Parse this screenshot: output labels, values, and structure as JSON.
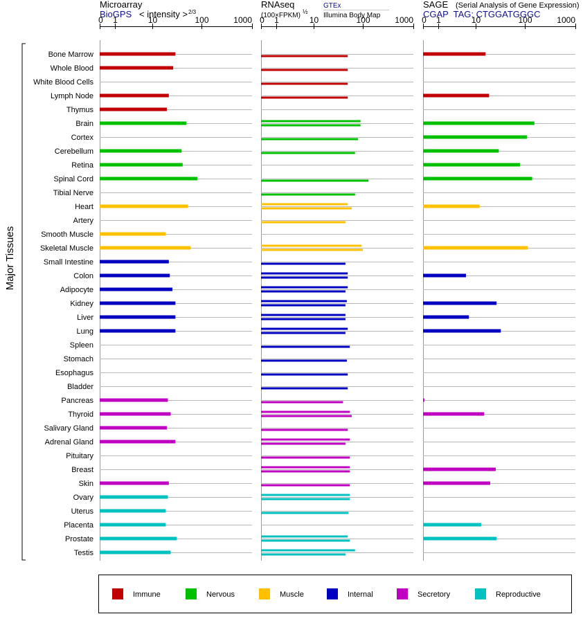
{
  "chart_data": {
    "type": "bar",
    "ylabel": "Major Tissues",
    "x_scale": "log",
    "x_ticks": [
      "0",
      "1",
      "10",
      "100",
      "1000"
    ],
    "categories": [
      "Bone Marrow",
      "Whole Blood",
      "White Blood Cells",
      "Lymph Node",
      "Thymus",
      "Brain",
      "Cortex",
      "Cerebellum",
      "Retina",
      "Spinal Cord",
      "Tibial Nerve",
      "Heart",
      "Artery",
      "Smooth Muscle",
      "Skeletal Muscle",
      "Small Intestine",
      "Colon",
      "Adipocyte",
      "Kidney",
      "Liver",
      "Lung",
      "Spleen",
      "Stomach",
      "Esophagus",
      "Bladder",
      "Pancreas",
      "Thyroid",
      "Salivary Gland",
      "Adrenal Gland",
      "Pituitary",
      "Breast",
      "Skin",
      "Ovary",
      "Uterus",
      "Placenta",
      "Prostate",
      "Testis"
    ],
    "groups": [
      "Immune",
      "Immune",
      "Immune",
      "Immune",
      "Immune",
      "Nervous",
      "Nervous",
      "Nervous",
      "Nervous",
      "Nervous",
      "Nervous",
      "Muscle",
      "Muscle",
      "Muscle",
      "Muscle",
      "Internal",
      "Internal",
      "Internal",
      "Internal",
      "Internal",
      "Internal",
      "Internal",
      "Internal",
      "Internal",
      "Internal",
      "Secretory",
      "Secretory",
      "Secretory",
      "Secretory",
      "Secretory",
      "Secretory",
      "Secretory",
      "Reproductive",
      "Reproductive",
      "Reproductive",
      "Reproductive",
      "Reproductive"
    ],
    "legend": [
      {
        "name": "Immune",
        "color": "#c00000"
      },
      {
        "name": "Nervous",
        "color": "#00c000"
      },
      {
        "name": "Muscle",
        "color": "#ffc000"
      },
      {
        "name": "Internal",
        "color": "#0000c0"
      },
      {
        "name": "Secretory",
        "color": "#c000c0"
      },
      {
        "name": "Reproductive",
        "color": "#00c0c0"
      }
    ],
    "panels": [
      {
        "title": "Microarray",
        "source": "BioGPS",
        "scale_label": "< intensity >",
        "scale_exp": "2/3",
        "values": [
          30,
          27,
          null,
          22,
          20,
          50,
          null,
          40,
          42,
          83,
          null,
          54,
          null,
          19,
          61,
          22,
          23,
          26,
          30,
          30,
          30,
          null,
          null,
          null,
          null,
          21,
          24,
          20,
          30,
          null,
          null,
          22,
          21,
          19,
          19,
          32,
          24
        ]
      },
      {
        "title": "RNAseq",
        "scale_label": "(100×FPKM)",
        "scale_exp": "½",
        "source_top": "GTEx",
        "source_bottom": "Illumina Body Map",
        "values": [
          [
            null,
            50
          ],
          [
            null,
            50
          ],
          [
            null,
            50
          ],
          [
            null,
            50
          ],
          [
            null,
            null
          ],
          [
            90,
            90
          ],
          [
            null,
            80
          ],
          [
            null,
            70
          ],
          [
            null,
            null
          ],
          [
            null,
            130
          ],
          [
            null,
            70
          ],
          [
            50,
            60
          ],
          [
            null,
            45
          ],
          [
            null,
            null
          ],
          [
            95,
            100
          ],
          [
            null,
            45
          ],
          [
            50,
            50
          ],
          [
            50,
            45
          ],
          [
            48,
            45
          ],
          [
            45,
            45
          ],
          [
            50,
            45
          ],
          [
            null,
            55
          ],
          [
            null,
            48
          ],
          [
            null,
            50
          ],
          [
            null,
            50
          ],
          [
            null,
            40
          ],
          [
            55,
            60
          ],
          [
            null,
            50
          ],
          [
            55,
            45
          ],
          [
            null,
            55
          ],
          [
            55,
            55
          ],
          [
            null,
            55
          ],
          [
            55,
            55
          ],
          [
            null,
            52
          ],
          [
            null,
            null
          ],
          [
            50,
            55
          ],
          [
            70,
            45
          ]
        ]
      },
      {
        "title": "SAGE",
        "subtitle": "(Serial Analysis of Gene Expression)",
        "source": "CGAP  TAG: CTGGATGGGC",
        "values": [
          16,
          null,
          null,
          19,
          null,
          155,
          110,
          30,
          80,
          140,
          null,
          12,
          null,
          null,
          115,
          null,
          6,
          null,
          27,
          7,
          33,
          null,
          null,
          null,
          null,
          0.06,
          15,
          null,
          null,
          null,
          26,
          20,
          null,
          null,
          13,
          27,
          null
        ]
      }
    ]
  }
}
